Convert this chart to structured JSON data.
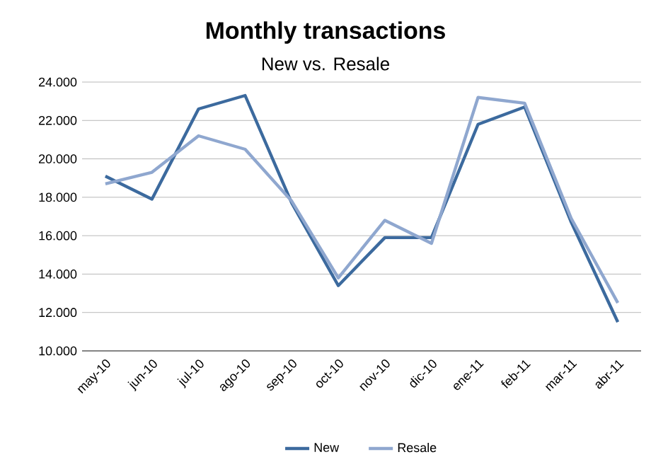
{
  "chart_data": {
    "type": "line",
    "title": "Monthly transactions",
    "subtitle": "New vs. Resale",
    "categories": [
      "may-10",
      "jun-10",
      "jul-10",
      "ago-10",
      "sep-10",
      "oct-10",
      "nov-10",
      "dic-10",
      "ene-11",
      "feb-11",
      "mar-11",
      "abr-11"
    ],
    "series": [
      {
        "name": "New",
        "color": "#3c6a9e",
        "values": [
          19100,
          17900,
          22600,
          23300,
          17700,
          13400,
          15900,
          15900,
          21800,
          22700,
          16700,
          11500
        ]
      },
      {
        "name": "Resale",
        "color": "#8fa7cf",
        "values": [
          18700,
          19300,
          21200,
          20500,
          17800,
          13800,
          16800,
          15600,
          23200,
          22900,
          16900,
          12500
        ]
      }
    ],
    "ylim": [
      10000,
      24000
    ],
    "yticks": [
      {
        "value": 10000,
        "label": "10.000"
      },
      {
        "value": 12000,
        "label": "12.000"
      },
      {
        "value": 14000,
        "label": "14.000"
      },
      {
        "value": 16000,
        "label": "16.000"
      },
      {
        "value": 18000,
        "label": "18.000"
      },
      {
        "value": 20000,
        "label": "20.000"
      },
      {
        "value": 22000,
        "label": "22.000"
      },
      {
        "value": 24000,
        "label": "24.000"
      }
    ],
    "grid": "y",
    "legend": "bottom",
    "marker": "none",
    "line_style": "solid"
  }
}
